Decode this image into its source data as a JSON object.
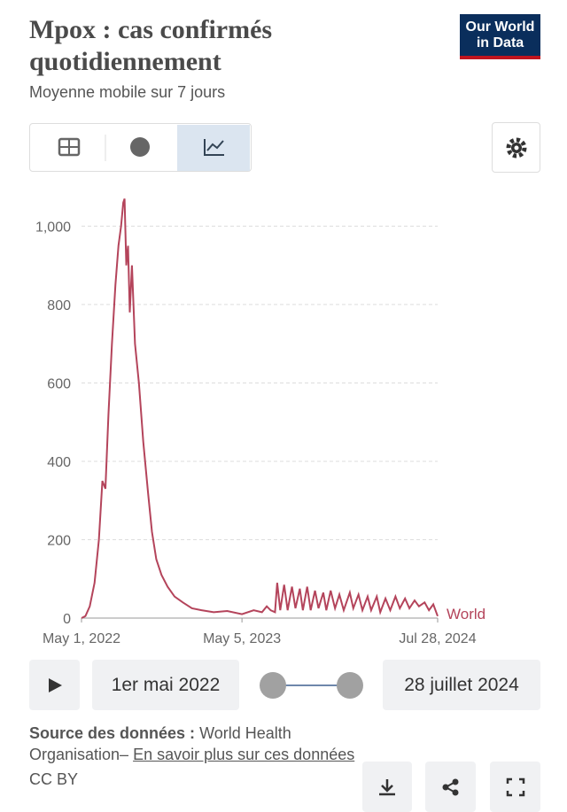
{
  "chart_data": {
    "type": "line",
    "title": "Mpox : cas confirmés quotidiennement",
    "subtitle": "Moyenne mobile sur 7 jours",
    "x": [
      "2022-05-01",
      "2022-05-10",
      "2022-05-20",
      "2022-05-31",
      "2022-06-10",
      "2022-06-18",
      "2022-06-25",
      "2022-07-02",
      "2022-07-10",
      "2022-07-18",
      "2022-07-25",
      "2022-07-31",
      "2022-08-05",
      "2022-08-08",
      "2022-08-12",
      "2022-08-16",
      "2022-08-20",
      "2022-08-25",
      "2022-09-01",
      "2022-09-10",
      "2022-09-20",
      "2022-10-01",
      "2022-10-10",
      "2022-10-20",
      "2022-11-01",
      "2022-11-15",
      "2022-12-01",
      "2022-12-20",
      "2023-01-10",
      "2023-02-01",
      "2023-03-01",
      "2023-04-01",
      "2023-05-05",
      "2023-06-01",
      "2023-06-20",
      "2023-07-01",
      "2023-07-10",
      "2023-07-20",
      "2023-07-25",
      "2023-08-01",
      "2023-08-10",
      "2023-08-18",
      "2023-08-28",
      "2023-09-05",
      "2023-09-15",
      "2023-09-22",
      "2023-10-02",
      "2023-10-10",
      "2023-10-20",
      "2023-10-28",
      "2023-11-08",
      "2023-11-15",
      "2023-11-25",
      "2023-12-05",
      "2023-12-15",
      "2023-12-25",
      "2024-01-08",
      "2024-01-16",
      "2024-01-28",
      "2024-02-06",
      "2024-02-18",
      "2024-02-26",
      "2024-03-10",
      "2024-03-18",
      "2024-03-30",
      "2024-04-10",
      "2024-04-22",
      "2024-05-02",
      "2024-05-14",
      "2024-05-24",
      "2024-06-05",
      "2024-06-15",
      "2024-06-28",
      "2024-07-08",
      "2024-07-18",
      "2024-07-28"
    ],
    "series": [
      {
        "name": "World",
        "color": "#b4445b",
        "values": [
          0,
          5,
          30,
          90,
          200,
          350,
          330,
          520,
          700,
          850,
          950,
          1000,
          1060,
          1070,
          900,
          950,
          780,
          900,
          700,
          600,
          450,
          320,
          220,
          150,
          110,
          80,
          55,
          40,
          25,
          20,
          15,
          18,
          10,
          20,
          15,
          30,
          20,
          15,
          90,
          20,
          85,
          20,
          80,
          25,
          75,
          20,
          80,
          20,
          70,
          25,
          65,
          20,
          70,
          25,
          60,
          20,
          65,
          25,
          60,
          20,
          55,
          20,
          55,
          15,
          50,
          20,
          55,
          25,
          50,
          25,
          45,
          30,
          40,
          20,
          35,
          5
        ]
      }
    ],
    "xlim": [
      "2022-05-01",
      "2024-07-28"
    ],
    "xticks": [
      {
        "value": "2022-05-01",
        "label": "May 1, 2022"
      },
      {
        "value": "2023-05-05",
        "label": "May 5, 2023"
      },
      {
        "value": "2024-07-28",
        "label": "Jul 28, 2024"
      }
    ],
    "ylim": [
      0,
      1080
    ],
    "yticks": [
      0,
      200,
      400,
      600,
      800,
      {
        "value": 1000,
        "label": "1,000"
      }
    ],
    "grid": true
  },
  "logo": [
    "Our World",
    "in Data"
  ],
  "controls": {
    "start": "1er mai 2022",
    "end": "28 juillet 2024"
  },
  "footer": {
    "source_label": "Source des données :",
    "source": "World Health Organisation–",
    "link": "En savoir plus sur ces données",
    "license": "CC BY"
  }
}
